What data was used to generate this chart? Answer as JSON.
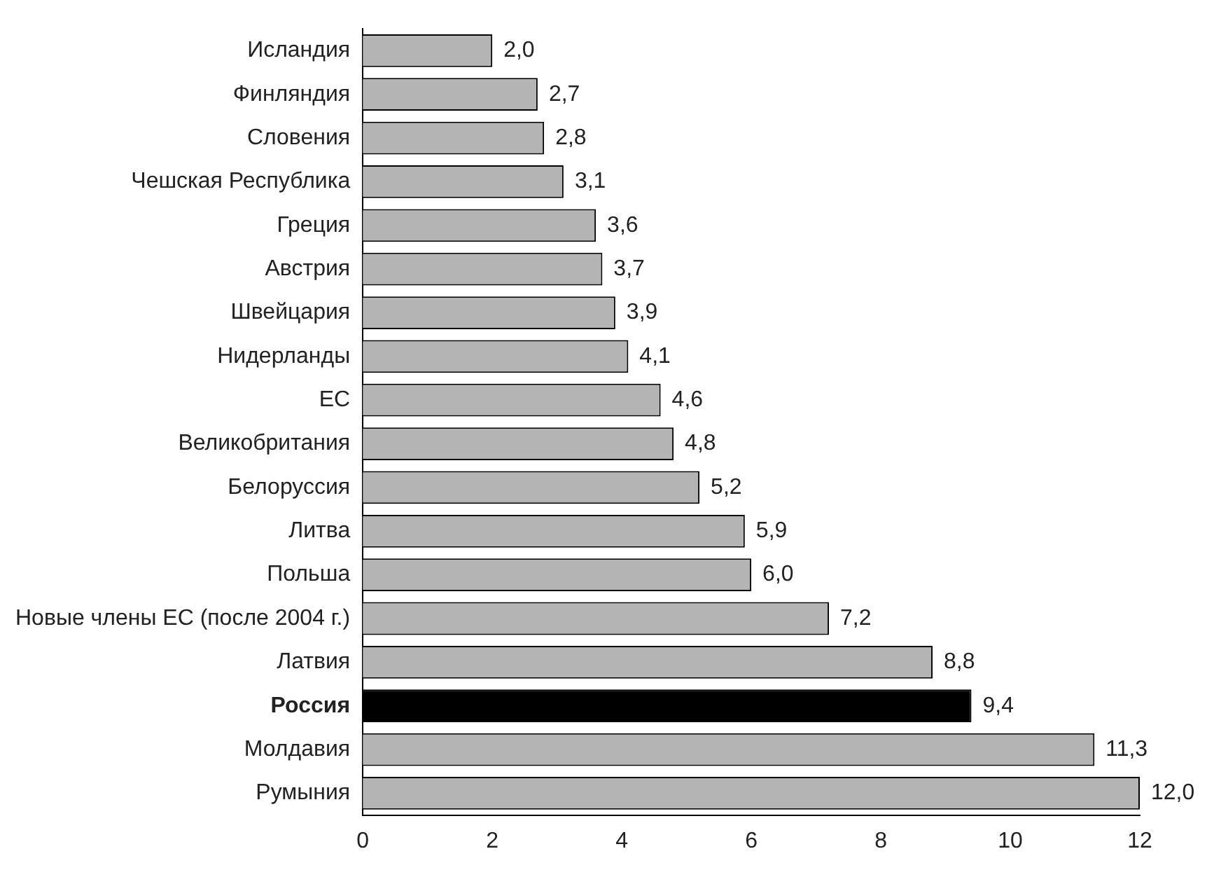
{
  "chart_data": {
    "type": "bar",
    "orientation": "horizontal",
    "categories": [
      "Исландия",
      "Финляндия",
      "Словения",
      "Чешская Республика",
      "Греция",
      "Австрия",
      "Швейцария",
      "Нидерланды",
      "ЕС",
      "Великобритания",
      "Белоруссия",
      "Литва",
      "Польша",
      "Новые члены ЕС (после 2004 г.)",
      "Латвия",
      "Россия",
      "Молдавия",
      "Румыния"
    ],
    "values": [
      2.0,
      2.7,
      2.8,
      3.1,
      3.6,
      3.7,
      3.9,
      4.1,
      4.6,
      4.8,
      5.2,
      5.9,
      6.0,
      7.2,
      8.8,
      9.4,
      11.3,
      12.0
    ],
    "value_labels": [
      "2,0",
      "2,7",
      "2,8",
      "3,1",
      "3,6",
      "3,7",
      "3,9",
      "4,1",
      "4,6",
      "4,8",
      "5,2",
      "5,9",
      "6,0",
      "7,2",
      "8,8",
      "9,4",
      "11,3",
      "12,0"
    ],
    "colors": [
      "#b4b4b4",
      "#b4b4b4",
      "#b4b4b4",
      "#b4b4b4",
      "#b4b4b4",
      "#b4b4b4",
      "#b4b4b4",
      "#b4b4b4",
      "#b4b4b4",
      "#b4b4b4",
      "#b4b4b4",
      "#b4b4b4",
      "#b4b4b4",
      "#b4b4b4",
      "#b4b4b4",
      "#000000",
      "#b4b4b4",
      "#b4b4b4"
    ],
    "xlim": [
      0,
      12
    ],
    "xticks": [
      0,
      2,
      4,
      6,
      8,
      10,
      12
    ],
    "grid": false,
    "legend": false
  }
}
